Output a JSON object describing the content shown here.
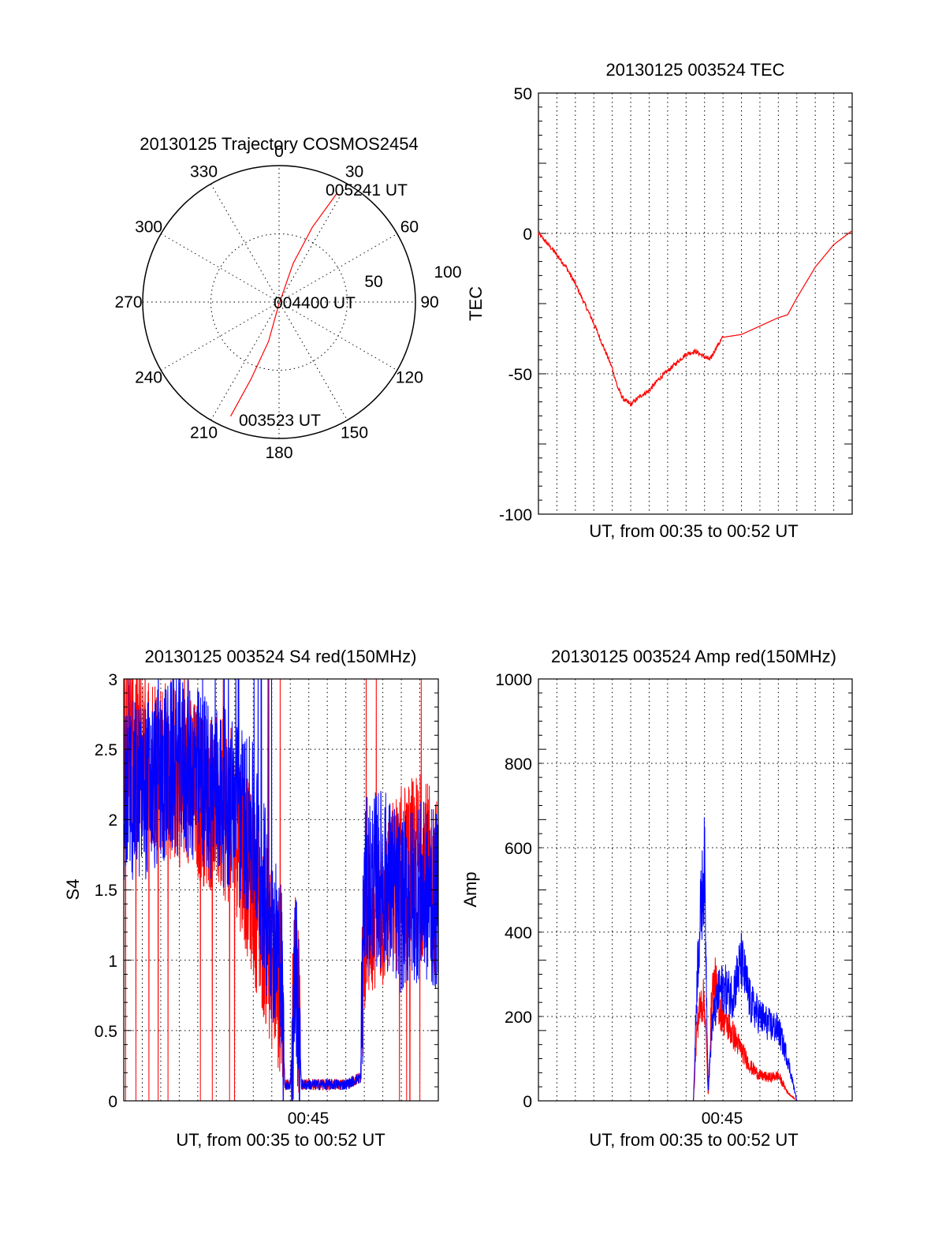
{
  "polar": {
    "title": "20130125 Trajectory COSMOS2454",
    "angle_labels": [
      "0",
      "30",
      "60",
      "90",
      "120",
      "150",
      "180",
      "210",
      "240",
      "270",
      "300",
      "330"
    ],
    "radius_labels": [
      "50",
      "100"
    ],
    "start_label": "003523 UT",
    "mid_label": "004400 UT",
    "end_label": "005241 UT",
    "trace_color": "#ff0000"
  },
  "tec": {
    "title": "20130125 003524 TEC",
    "ylabel": "TEC",
    "xlabel": "UT, from 00:35 to 00:52 UT",
    "ytick_labels": [
      "50",
      "0",
      "-50",
      "-100"
    ]
  },
  "s4": {
    "title": "20130125 003524 S4 red(150MHz)",
    "ylabel": "S4",
    "xlabel": "UT, from 00:35 to 00:52 UT",
    "xtick_label": "00:45",
    "ytick_labels": [
      "3",
      "2.5",
      "2",
      "1.5",
      "1",
      "0.5",
      "0"
    ]
  },
  "amp": {
    "title": "20130125 003524 Amp red(150MHz)",
    "ylabel": "Amp",
    "xlabel": "UT, from 00:35 to 00:52 UT",
    "xtick_label": "00:45",
    "ytick_labels": [
      "1000",
      "800",
      "600",
      "400",
      "200",
      "0"
    ]
  },
  "chart_data": [
    {
      "type": "line",
      "subtype": "polar",
      "title": "20130125 Trajectory COSMOS2454",
      "theta_direction": "clockwise from top",
      "r_range": [
        0,
        100
      ],
      "points": [
        {
          "az": 203,
          "r": 91,
          "label": "003523 UT"
        },
        {
          "az": 200,
          "r": 60
        },
        {
          "az": 195,
          "r": 30
        },
        {
          "az": 190,
          "r": 3
        },
        {
          "az": 20,
          "r": 30
        },
        {
          "az": 24,
          "r": 60
        },
        {
          "az": 28,
          "r": 90,
          "label": "005241 UT"
        }
      ],
      "series_color": "#ff0000"
    },
    {
      "type": "line",
      "title": "20130125 003524 TEC",
      "xlabel": "UT, from 00:35 to 00:52 UT",
      "ylabel": "TEC",
      "xlim": [
        0,
        17
      ],
      "ylim": [
        -100,
        50
      ],
      "grid": true,
      "x_units": "minutes since 00:35 UT",
      "x": [
        0,
        0.8,
        1.5,
        2.0,
        2.5,
        3.0,
        3.5,
        4.0,
        4.3,
        4.6,
        5.0,
        5.5,
        6.0,
        6.5,
        7.0,
        7.5,
        8.0,
        8.5,
        9.0,
        9.3,
        9.6,
        10.0,
        11.0,
        12.0,
        13.0,
        13.5,
        14.0,
        15.0,
        16.0,
        17.0
      ],
      "values": [
        0,
        -6,
        -12,
        -18,
        -25,
        -32,
        -40,
        -48,
        -55,
        -59,
        -61,
        -58,
        -56,
        -52,
        -49,
        -46,
        -43,
        -42,
        -44,
        -45,
        -41,
        -37,
        -36,
        -33,
        -30,
        -29,
        -23,
        -12,
        -4,
        1
      ],
      "series_color": "#ff0000"
    },
    {
      "type": "line",
      "title": "20130125 003524 S4 red(150MHz)",
      "xlabel": "UT, from 00:35 to 00:52 UT",
      "ylabel": "S4",
      "xlim": [
        0,
        17
      ],
      "ylim": [
        0,
        3
      ],
      "grid": true,
      "x_units": "minutes since 00:35 UT",
      "x": [
        0,
        1,
        2,
        3,
        4,
        5,
        6,
        7,
        8,
        8.5,
        8.7,
        9.0,
        9.3,
        9.6,
        10,
        11,
        12,
        12.8,
        13.0,
        14,
        15,
        16,
        17
      ],
      "series": [
        {
          "name": "red",
          "color": "#ff0000",
          "values": [
            2.6,
            2.5,
            2.4,
            2.3,
            2.2,
            2.1,
            2.0,
            1.5,
            1.0,
            0.8,
            0.1,
            0.1,
            1.1,
            0.1,
            0.1,
            0.1,
            0.1,
            0.15,
            1.3,
            1.4,
            1.6,
            1.7,
            1.5
          ]
        },
        {
          "name": "blue",
          "color": "#0000ff",
          "values": [
            2.2,
            2.2,
            2.3,
            2.4,
            2.3,
            2.2,
            2.1,
            1.9,
            1.2,
            1.0,
            0.1,
            0.1,
            1.0,
            0.1,
            0.1,
            0.1,
            0.1,
            0.15,
            1.5,
            1.6,
            1.4,
            1.5,
            1.4
          ]
        }
      ]
    },
    {
      "type": "line",
      "title": "20130125 003524 Amp red(150MHz)",
      "xlabel": "UT, from 00:35 to 00:52 UT",
      "ylabel": "Amp",
      "xlim": [
        0,
        17
      ],
      "ylim": [
        0,
        1000
      ],
      "grid": true,
      "x_units": "minutes since 00:35 UT",
      "x": [
        0,
        4,
        8,
        8.4,
        8.6,
        8.8,
        9.0,
        9.2,
        9.4,
        9.6,
        9.8,
        10.0,
        10.5,
        11.0,
        11.5,
        12.0,
        12.5,
        13.0,
        13.5,
        14.0,
        17.0
      ],
      "series": [
        {
          "name": "red",
          "color": "#ff0000",
          "values": [
            0,
            0,
            0,
            0,
            180,
            230,
            240,
            10,
            260,
            280,
            220,
            200,
            160,
            120,
            80,
            60,
            55,
            60,
            20,
            0,
            0
          ]
        },
        {
          "name": "blue",
          "color": "#0000ff",
          "values": [
            0,
            0,
            0,
            0,
            300,
            450,
            560,
            20,
            180,
            220,
            260,
            270,
            250,
            330,
            230,
            200,
            180,
            170,
            100,
            0,
            0
          ]
        }
      ]
    }
  ]
}
